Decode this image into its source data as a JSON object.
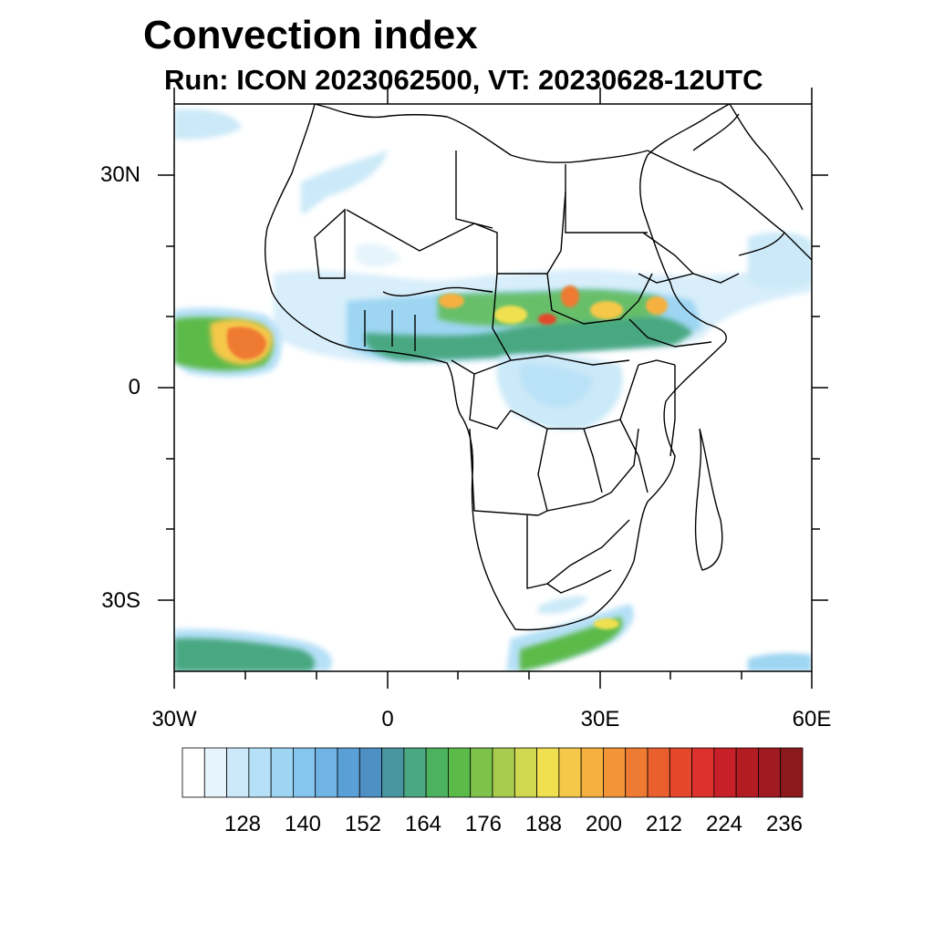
{
  "title": "Convection index",
  "subtitle": "Run: ICON 2023062500,  VT: 20230628-12UTC",
  "axes": {
    "lat_labels": [
      "30N",
      "0",
      "30S"
    ],
    "lon_labels": [
      "30W",
      "0",
      "30E",
      "60E"
    ]
  },
  "colorbar": {
    "labels": [
      "128",
      "140",
      "152",
      "164",
      "176",
      "188",
      "200",
      "212",
      "224",
      "236"
    ],
    "colors": [
      "#ffffff",
      "#e6f4fb",
      "#cbe9f8",
      "#b5e0f7",
      "#9dd5f2",
      "#84c6ee",
      "#70b4e6",
      "#5a9fd6",
      "#4e8fc4",
      "#4a96a0",
      "#4aa882",
      "#4db25e",
      "#5bba48",
      "#7dc24a",
      "#a8cc4e",
      "#cfd850",
      "#f0e050",
      "#f6c84a",
      "#f6b040",
      "#f39438",
      "#ef7a32",
      "#ea5f2e",
      "#e4472c",
      "#dc312d",
      "#c82028",
      "#b41c24",
      "#a01b20",
      "#8c1a1d"
    ]
  }
}
